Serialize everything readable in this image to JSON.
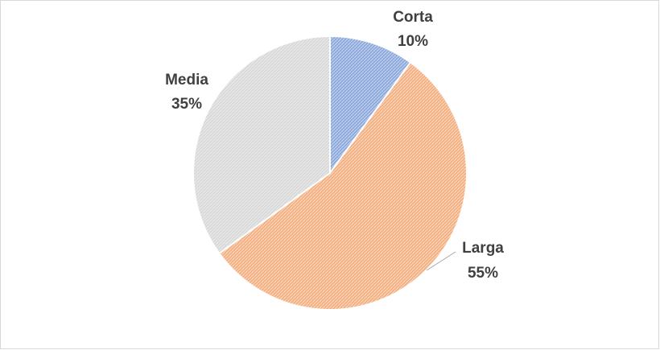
{
  "chart_data": {
    "type": "pie",
    "categories": [
      "Corta",
      "Larga",
      "Media"
    ],
    "values": [
      10,
      55,
      35
    ],
    "value_labels": [
      "10%",
      "55%",
      "35%"
    ],
    "colors": [
      "#8faadc",
      "#f4b183",
      "#d9d9d9"
    ]
  }
}
